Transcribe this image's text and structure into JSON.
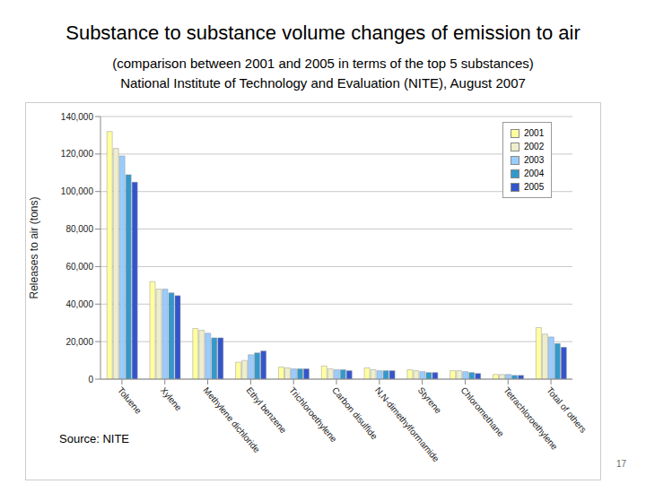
{
  "chart_data": {
    "type": "bar",
    "title": "Substance to substance volume changes of emission to air",
    "subtitle": [
      "(comparison between 2001 and 2005 in terms of the top 5 substances)",
      "National Institute of Technology and Evaluation (NITE), August 2007"
    ],
    "annotations": [
      "Source: NITE",
      "17"
    ],
    "y_label": "Releases to air (tons)",
    "categories": [
      "Toluene",
      "Xylene",
      "Methylene dichloride",
      "Ethyl benzene",
      "Trichloroethylene",
      "Carbon disulfide",
      "N,N-dimethylformamide",
      "Styrene",
      "Chloromethane",
      "Tetrachloroethylene",
      "Total of others"
    ],
    "series": [
      {
        "name": "2001",
        "color": "#ffffa0",
        "values": [
          132000,
          52000,
          27000,
          9000,
          6500,
          7000,
          6000,
          5000,
          4500,
          2500,
          27500
        ]
      },
      {
        "name": "2002",
        "color": "#eeeecc",
        "values": [
          123000,
          48000,
          26000,
          10000,
          6000,
          5500,
          5000,
          4500,
          4500,
          2500,
          24000
        ]
      },
      {
        "name": "2003",
        "color": "#99ccff",
        "values": [
          119000,
          48000,
          24500,
          13000,
          5500,
          5000,
          4500,
          4000,
          4000,
          2500,
          22500
        ]
      },
      {
        "name": "2004",
        "color": "#3399cc",
        "values": [
          109000,
          46000,
          22000,
          14000,
          5500,
          5000,
          4500,
          3500,
          3500,
          2000,
          19000
        ]
      },
      {
        "name": "2005",
        "color": "#3355cc",
        "values": [
          105000,
          44500,
          22000,
          15000,
          5500,
          4500,
          4500,
          3500,
          3000,
          2000,
          17000
        ]
      }
    ],
    "ylim": [
      0,
      140000
    ],
    "yticks": [
      0,
      {
        "value": 20000,
        "label": "20,000"
      },
      {
        "value": 40000,
        "label": "40,000"
      },
      {
        "value": 60000,
        "label": "60,000"
      },
      {
        "value": 80000,
        "label": "80,000"
      },
      {
        "value": 100000,
        "label": "100,000"
      },
      {
        "value": 120000,
        "label": "120,000"
      },
      {
        "value": 140000,
        "label": "140,000"
      }
    ],
    "grid": true,
    "legend": "upper-right"
  }
}
